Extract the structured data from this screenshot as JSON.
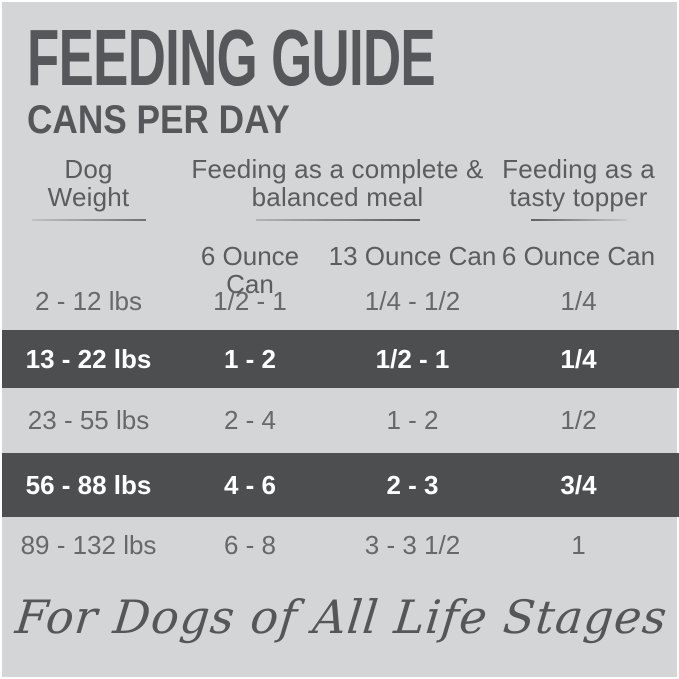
{
  "page": {
    "title": "FEEDING GUIDE",
    "subtitle": "CANS PER DAY",
    "footer_note": "For Dogs of All Life Stages"
  },
  "colors": {
    "background": "#d4d5d7",
    "highlight_row_background": "#4d4e4f",
    "title_text": "#56575a",
    "body_text": "#67686b",
    "highlight_row_text": "#ffffff",
    "page_border": "#ffffff"
  },
  "table": {
    "column_groups": [
      {
        "line1": "Dog",
        "line2": "Weight"
      },
      {
        "line1": "Feeding as a complete &",
        "line2": "balanced meal"
      },
      {
        "line1": "Feeding as a",
        "line2": "tasty topper"
      }
    ],
    "sub_headers": [
      "6 Ounce Can",
      "13 Ounce Can",
      "6 Ounce Can"
    ],
    "rows": [
      {
        "highlight": false,
        "cells": [
          "2 - 12 lbs",
          "1/2 - 1",
          "1/4 - 1/2",
          "1/4"
        ]
      },
      {
        "highlight": true,
        "cells": [
          "13 - 22 lbs",
          "1 - 2",
          "1/2 - 1",
          "1/4"
        ]
      },
      {
        "highlight": false,
        "cells": [
          "23 - 55 lbs",
          "2 - 4",
          "1 - 2",
          "1/2"
        ]
      },
      {
        "highlight": true,
        "cells": [
          "56 - 88 lbs",
          "4 - 6",
          "2 - 3",
          "3/4"
        ]
      },
      {
        "highlight": false,
        "cells": [
          "89 - 132 lbs",
          "6 - 8",
          "3 - 3 1/2",
          "1"
        ]
      }
    ]
  }
}
